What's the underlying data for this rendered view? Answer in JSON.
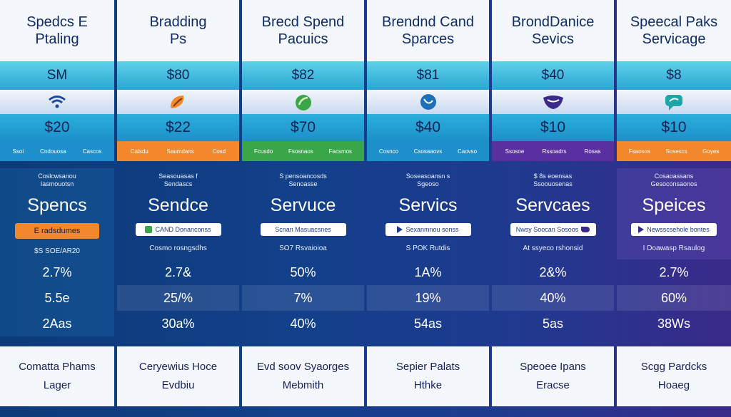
{
  "columns": [
    {
      "header": [
        "Spedcs E",
        "Ptaling"
      ],
      "top": "SM",
      "icon": "wifi-icon",
      "price": "$20",
      "tags": [
        "Ssoi",
        "Cndouosa",
        "Cascos"
      ],
      "tag_color": "#1d8fca",
      "kicker": [
        "Coslcwsanou",
        "Iasmouotsn"
      ],
      "title": "Spencs",
      "pill": "E radsdumes",
      "pill_style": "orange",
      "note": "$S SOE/AR20",
      "stats": [
        "2.7%",
        "5.5e",
        "2Aas"
      ],
      "footer": [
        "Comatta Phams",
        "Lager"
      ]
    },
    {
      "header": [
        "Bradding",
        "Ps"
      ],
      "top": "$80",
      "icon": "leaf-icon",
      "price": "$22",
      "tags": [
        "Calsdu",
        "Saumdans",
        "Cosd"
      ],
      "tag_color": "#f2872b",
      "kicker": [
        "Seasouasas f",
        "Sendascs"
      ],
      "title": "Sendce",
      "pill": "CAND Donanconss",
      "pill_style": "white",
      "note": "Cosmo rosngsdhs",
      "stats": [
        "2.7&",
        "25/%",
        "30a%"
      ],
      "footer": [
        "Ceryewius Hoce",
        "Evdbiu"
      ]
    },
    {
      "header": [
        "Brecd Spend",
        "Pacuics"
      ],
      "top": "$82",
      "icon": "leaf-icon",
      "price": "$70",
      "tags": [
        "Fcusdo",
        "Fsosnaos",
        "Facsmos"
      ],
      "tag_color": "#3aa64a",
      "kicker": [
        "S pensoancosds",
        "Senoasse"
      ],
      "title": "Servuce",
      "pill": "Scnan Masuacsnes",
      "pill_style": "white",
      "note": "SO7 Rsvaioioa",
      "stats": [
        "50%",
        "7%",
        "40%"
      ],
      "footer": [
        "Evd soov Syaorges",
        "Mebmith"
      ]
    },
    {
      "header": [
        "Brendnd Cand",
        "Sparces"
      ],
      "top": "$81",
      "icon": "globe-icon",
      "price": "$40",
      "tags": [
        "Cosnco",
        "Csosaaovs",
        "Caovso"
      ],
      "tag_color": "#1d8fca",
      "kicker": [
        "Soseasoansn s",
        "Sgeoso"
      ],
      "title": "Servics",
      "pill": "Sexanmnou sonss",
      "pill_style": "white",
      "note": "S POK Rutdis",
      "stats": [
        "1A%",
        "19%",
        "54as"
      ],
      "footer": [
        "Sepier Palats",
        "Hthke"
      ]
    },
    {
      "header": [
        "BrondDanice",
        "Sevics"
      ],
      "top": "$40",
      "icon": "shield-icon",
      "price": "$10",
      "tags": [
        "Ssosoe",
        "Rssoadrs",
        "Rosas"
      ],
      "tag_color": "#5a2fa0",
      "kicker": [
        "$ 8s eoensas",
        "Ssoouosenas"
      ],
      "title": "Servcaes",
      "pill": "Nwsy Soocan Sosoos",
      "pill_style": "white",
      "note": "At ssyeco rshonsid",
      "stats": [
        "2&%",
        "40%",
        "5as"
      ],
      "footer": [
        "Speoee Ipans",
        "Eracse"
      ]
    },
    {
      "header": [
        "Speecal Paks",
        "Servicage"
      ],
      "top": "$8",
      "icon": "chat-icon",
      "price": "$10",
      "tags": [
        "Fsaosos",
        "Sosescs",
        "Goyes"
      ],
      "tag_color": "#f2872b",
      "kicker": [
        "Cosaoassans",
        "Gesoconsaonos"
      ],
      "title": "Speices",
      "pill": "Newsscsehole bontes",
      "pill_style": "white",
      "note": "I Doawasp Rsaulog",
      "stats": [
        "2.7%",
        "60%",
        "38Ws"
      ],
      "footer": [
        "Scgg Pardcks",
        "Hoaeg"
      ]
    }
  ]
}
